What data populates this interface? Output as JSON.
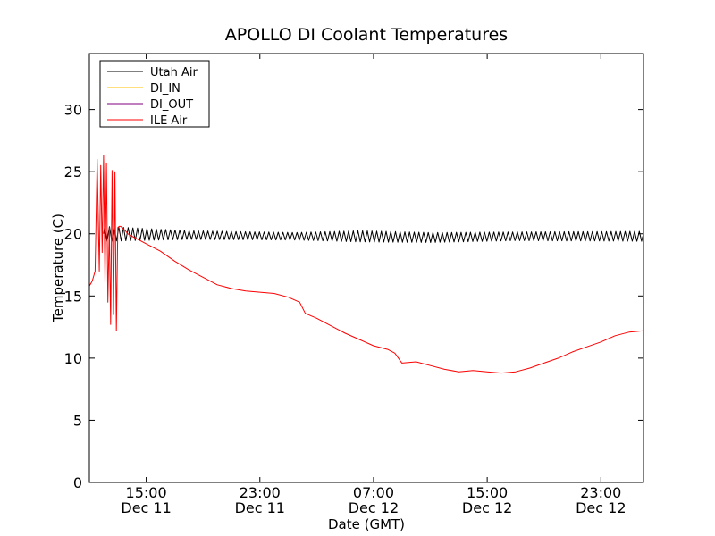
{
  "chart_data": {
    "type": "line",
    "title": "APOLLO DI Coolant Temperatures",
    "xlabel": "Date (GMT)",
    "ylabel": "Temperature (C)",
    "xlim": [
      11.0,
      50.0
    ],
    "ylim": [
      0,
      34.5
    ],
    "x_unit": "hours since Dec 11 00:00 GMT",
    "y_ticks": [
      0,
      5,
      10,
      15,
      20,
      25,
      30
    ],
    "x_ticks": [
      {
        "x": 15,
        "time": "15:00",
        "date": "Dec 11"
      },
      {
        "x": 23,
        "time": "23:00",
        "date": "Dec 11"
      },
      {
        "x": 31,
        "time": "07:00",
        "date": "Dec 12"
      },
      {
        "x": 39,
        "time": "15:00",
        "date": "Dec 12"
      },
      {
        "x": 47,
        "time": "23:00",
        "date": "Dec 12"
      }
    ],
    "legend_position": "top-left",
    "series": [
      {
        "name": "Utah Air",
        "color": "#000000",
        "kind": "oscillating",
        "x": [
          12.0,
          18.0,
          25.5,
          30.0,
          35.0,
          41.0,
          50.0
        ],
        "mean": [
          20.0,
          19.9,
          19.8,
          19.8,
          19.7,
          19.8,
          19.8
        ],
        "amplitude": [
          0.6,
          0.35,
          0.3,
          0.45,
          0.4,
          0.35,
          0.4
        ],
        "period_hours": 0.33
      },
      {
        "name": "DI_IN",
        "color": "#ffbf00",
        "x": [],
        "y": []
      },
      {
        "name": "DI_OUT",
        "color": "#800080",
        "x": [],
        "y": []
      },
      {
        "name": "ILE Air",
        "color": "#ff0000",
        "x": [
          11.0,
          11.2,
          11.4,
          11.55,
          11.7,
          11.8,
          11.9,
          12.0,
          12.1,
          12.2,
          12.3,
          12.4,
          12.5,
          12.6,
          12.7,
          12.8,
          12.9,
          13.0,
          13.1,
          13.2,
          13.3,
          13.4,
          13.5,
          13.7,
          14.0,
          14.5,
          15.0,
          16.0,
          17.0,
          18.0,
          19.0,
          20.0,
          21.0,
          22.0,
          23.0,
          24.0,
          25.0,
          25.8,
          26.2,
          27.0,
          28.0,
          29.0,
          30.0,
          31.0,
          32.0,
          32.5,
          33.0,
          34.0,
          35.0,
          36.0,
          37.0,
          38.0,
          39.0,
          40.0,
          41.0,
          42.0,
          43.0,
          44.0,
          45.0,
          46.0,
          47.0,
          48.0,
          49.0,
          50.0
        ],
        "y": [
          15.8,
          16.2,
          17.0,
          26.0,
          17.0,
          25.5,
          18.5,
          26.3,
          16.0,
          25.7,
          14.5,
          20.5,
          12.7,
          25.1,
          13.5,
          25.0,
          12.2,
          20.5,
          20.6,
          20.6,
          20.5,
          20.4,
          20.3,
          20.0,
          19.8,
          19.5,
          19.2,
          18.6,
          17.8,
          17.1,
          16.5,
          15.9,
          15.6,
          15.4,
          15.3,
          15.2,
          14.9,
          14.5,
          13.6,
          13.2,
          12.6,
          12.0,
          11.5,
          11.0,
          10.7,
          10.4,
          9.6,
          9.7,
          9.4,
          9.1,
          8.9,
          9.0,
          8.9,
          8.8,
          8.9,
          9.2,
          9.6,
          10.0,
          10.5,
          10.9,
          11.3,
          11.8,
          12.1,
          12.2
        ]
      }
    ]
  }
}
